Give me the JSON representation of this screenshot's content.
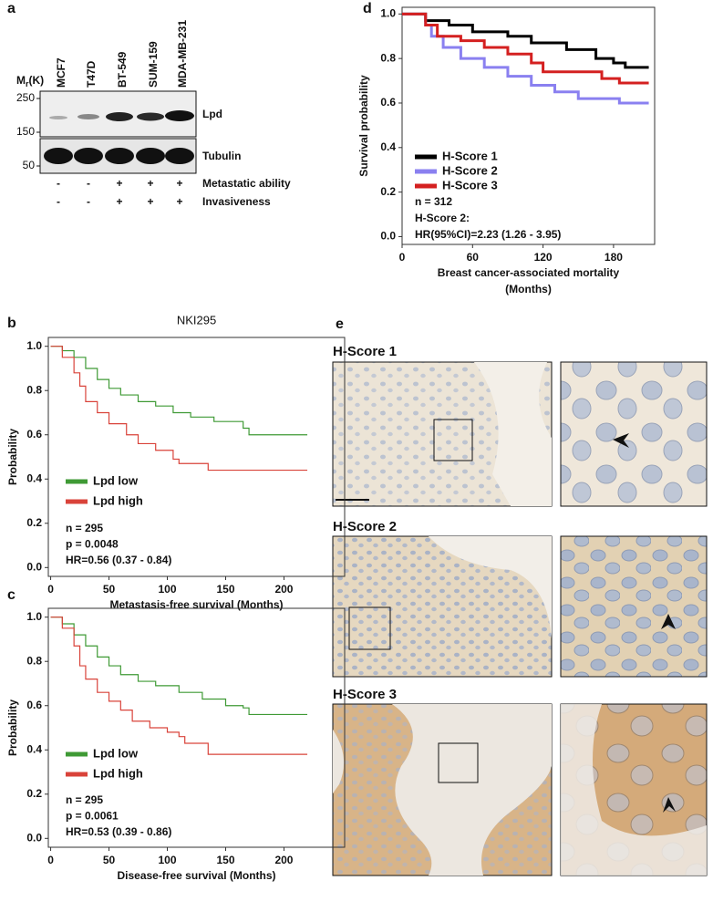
{
  "panel_labels": [
    "a",
    "b",
    "c",
    "d",
    "e"
  ],
  "blot": {
    "mw_label": {
      "symbol": "M",
      "subscript": "r",
      "unit": "(K)"
    },
    "cell_lines": [
      "MCF7",
      "T47D",
      "BT-549",
      "SUM-159",
      "MDA-MB-231"
    ],
    "markers": [
      250,
      150,
      50
    ],
    "bands": [
      "Lpd",
      "Tubulin"
    ],
    "features": [
      {
        "name": "Metastatic ability",
        "values": [
          "-",
          "-",
          "+",
          "+",
          "+"
        ]
      },
      {
        "name": "Invasiveness",
        "values": [
          "-",
          "-",
          "+",
          "+",
          "+"
        ]
      }
    ]
  },
  "ihc": {
    "rows": [
      "H-Score 1",
      "H-Score 2",
      "H-Score 3"
    ]
  },
  "chart_data": [
    {
      "type": "line",
      "drawstyle": "steps-post",
      "xlabel": [
        "Breast cancer-associated mortality",
        "(Months)"
      ],
      "ylabel": "Survival probability",
      "xlim": [
        0,
        215
      ],
      "ylim": [
        -0.035,
        1.03
      ],
      "xticks": [
        0,
        60,
        120,
        180
      ],
      "yticks": [
        {
          "value": 0,
          "label": "0.0"
        },
        0.2,
        0.4,
        0.6,
        0.8,
        {
          "value": 1,
          "label": "1.0"
        }
      ],
      "series": [
        {
          "name": "H-Score 1",
          "color": "#000000",
          "x": [
            0,
            15,
            20,
            40,
            60,
            90,
            110,
            140,
            165,
            180,
            190,
            210
          ],
          "values": [
            1.0,
            1.0,
            0.97,
            0.95,
            0.92,
            0.9,
            0.87,
            0.84,
            0.8,
            0.78,
            0.76,
            0.76
          ]
        },
        {
          "name": "H-Score 2",
          "color": "#8a80f0",
          "x": [
            0,
            15,
            20,
            25,
            35,
            50,
            70,
            90,
            110,
            130,
            150,
            185,
            210
          ],
          "values": [
            1.0,
            1.0,
            0.95,
            0.9,
            0.85,
            0.8,
            0.76,
            0.72,
            0.68,
            0.65,
            0.62,
            0.6,
            0.6
          ]
        },
        {
          "name": "H-Score 3",
          "color": "#d42020",
          "x": [
            0,
            15,
            20,
            30,
            50,
            70,
            90,
            110,
            120,
            155,
            170,
            185,
            210
          ],
          "values": [
            1.0,
            1.0,
            0.95,
            0.9,
            0.88,
            0.85,
            0.82,
            0.78,
            0.74,
            0.74,
            0.71,
            0.69,
            0.69
          ]
        }
      ],
      "annotations": [
        "n = 312",
        "H-Score 2:",
        "HR(95%CI)=2.23 (1.26 - 3.95)"
      ]
    },
    {
      "type": "line",
      "drawstyle": "steps-post",
      "title": "NKI295",
      "xlabel": "Metastasis-free survival (Months)",
      "ylabel": "Probability",
      "xlim": [
        -2,
        252
      ],
      "ylim": [
        -0.04,
        1.04
      ],
      "xticks": [
        0,
        50,
        100,
        150,
        200
      ],
      "yticks": [
        {
          "value": 0,
          "label": "0.0"
        },
        0.2,
        0.4,
        0.6,
        0.8,
        {
          "value": 1,
          "label": "1.0"
        }
      ],
      "series": [
        {
          "name": "Lpd low",
          "color": "#3f9a35",
          "x": [
            0,
            10,
            20,
            30,
            40,
            50,
            60,
            75,
            90,
            105,
            120,
            140,
            165,
            170,
            220
          ],
          "values": [
            1.0,
            0.98,
            0.95,
            0.9,
            0.85,
            0.81,
            0.78,
            0.75,
            0.73,
            0.7,
            0.68,
            0.66,
            0.63,
            0.6,
            0.6
          ]
        },
        {
          "name": "Lpd high",
          "color": "#d9433a",
          "x": [
            0,
            10,
            20,
            25,
            30,
            40,
            50,
            65,
            75,
            90,
            105,
            110,
            135,
            220
          ],
          "values": [
            1.0,
            0.95,
            0.88,
            0.82,
            0.75,
            0.7,
            0.65,
            0.6,
            0.56,
            0.53,
            0.49,
            0.47,
            0.44,
            0.44
          ]
        }
      ],
      "annotations": [
        "n = 295",
        "p = 0.0048",
        "HR=0.56 (0.37 - 0.84)"
      ]
    },
    {
      "type": "line",
      "drawstyle": "steps-post",
      "xlabel": "Disease-free survival (Months)",
      "ylabel": "Probability",
      "xlim": [
        -2,
        252
      ],
      "ylim": [
        -0.04,
        1.04
      ],
      "xticks": [
        0,
        50,
        100,
        150,
        200
      ],
      "yticks": [
        {
          "value": 0,
          "label": "0.0"
        },
        0.2,
        0.4,
        0.6,
        0.8,
        {
          "value": 1,
          "label": "1.0"
        }
      ],
      "series": [
        {
          "name": "Lpd low",
          "color": "#3f9a35",
          "x": [
            0,
            10,
            20,
            30,
            40,
            50,
            60,
            75,
            90,
            110,
            130,
            150,
            165,
            170,
            220
          ],
          "values": [
            1.0,
            0.97,
            0.92,
            0.87,
            0.82,
            0.78,
            0.74,
            0.71,
            0.69,
            0.66,
            0.63,
            0.6,
            0.59,
            0.56,
            0.56
          ]
        },
        {
          "name": "Lpd high",
          "color": "#d9433a",
          "x": [
            0,
            10,
            20,
            25,
            30,
            40,
            50,
            60,
            70,
            85,
            100,
            110,
            115,
            135,
            220
          ],
          "values": [
            1.0,
            0.95,
            0.87,
            0.78,
            0.72,
            0.66,
            0.62,
            0.58,
            0.53,
            0.5,
            0.48,
            0.46,
            0.43,
            0.38,
            0.38
          ]
        }
      ],
      "annotations": [
        "n = 295",
        "p = 0.0061",
        "HR=0.53 (0.39 - 0.86)"
      ]
    }
  ]
}
